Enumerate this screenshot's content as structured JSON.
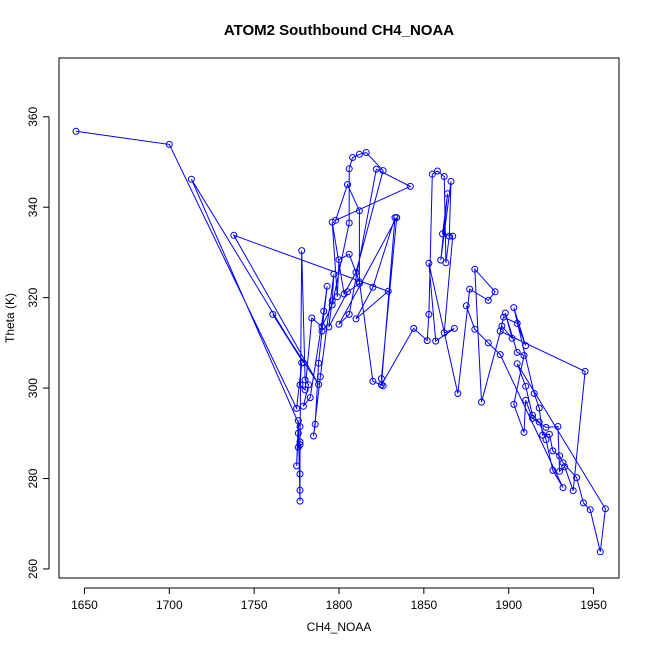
{
  "chart_data": {
    "type": "line",
    "title": "ATOM2 Southbound CH4_NOAA",
    "xlabel": "CH4_NOAA",
    "ylabel": "Theta (K)",
    "xlim": [
      1635,
      1965
    ],
    "ylim": [
      258,
      373
    ],
    "xticks": [
      1650,
      1700,
      1750,
      1800,
      1850,
      1900,
      1950
    ],
    "yticks": [
      260,
      280,
      300,
      320,
      340,
      360
    ],
    "grid": false,
    "legend": "none",
    "series": [
      {
        "name": "CH4_NOAA vs Theta",
        "color": "#0000ff",
        "marker": "open-circle",
        "points": [
          [
            1645,
            356.8
          ],
          [
            1700,
            353.9
          ],
          [
            1775,
            295.5
          ],
          [
            1778,
            305.6
          ],
          [
            1777,
            300.7
          ],
          [
            1780,
            299.6
          ],
          [
            1784,
            315.5
          ],
          [
            1790,
            313.6
          ],
          [
            1796,
            318.4
          ],
          [
            1806,
            336.5
          ],
          [
            1806,
            348.5
          ],
          [
            1808,
            351.0
          ],
          [
            1812,
            351.7
          ],
          [
            1816,
            352.1
          ],
          [
            1826,
            348.1
          ],
          [
            1810,
            325.6
          ],
          [
            1803,
            320.8
          ],
          [
            1796,
            336.7
          ],
          [
            1799,
            320.2
          ],
          [
            1800,
            328.4
          ],
          [
            1806,
            329.6
          ],
          [
            1812,
            323.5
          ],
          [
            1820,
            301.5
          ],
          [
            1826,
            300.5
          ],
          [
            1825,
            302.1
          ],
          [
            1834,
            337.7
          ],
          [
            1800,
            314.1
          ],
          [
            1806,
            316.3
          ],
          [
            1822,
            348.4
          ],
          [
            1842,
            344.6
          ],
          [
            1798,
            337.1
          ],
          [
            1805,
            345.0
          ],
          [
            1812,
            339.2
          ],
          [
            1812,
            323.1
          ],
          [
            1805,
            321.3
          ],
          [
            1794,
            313.5
          ],
          [
            1796,
            319.3
          ],
          [
            1797,
            325.2
          ],
          [
            1789,
            302.5
          ],
          [
            1785,
            289.4
          ],
          [
            1786,
            292.0
          ],
          [
            1788,
            305.5
          ],
          [
            1790,
            312.6
          ],
          [
            1793,
            322.5
          ],
          [
            1791,
            317.0
          ],
          [
            1783,
            297.9
          ],
          [
            1779,
            296.0
          ],
          [
            1782,
            300.7
          ],
          [
            1780,
            301.8
          ],
          [
            1778,
            330.4
          ],
          [
            1777,
            287.5
          ],
          [
            1776,
            286.9
          ],
          [
            1776,
            290.0
          ],
          [
            1775,
            282.8
          ],
          [
            1776,
            292.8
          ],
          [
            1777,
            275.0
          ],
          [
            1777,
            277.4
          ],
          [
            1777,
            281.0
          ],
          [
            1777,
            288.1
          ],
          [
            1777,
            291.5
          ],
          [
            1713,
            346.2
          ],
          [
            1779,
            305.6
          ],
          [
            1761,
            316.3
          ],
          [
            1788,
            300.8
          ],
          [
            1738,
            333.8
          ],
          [
            1829,
            321.4
          ],
          [
            1810,
            315.3
          ],
          [
            1820,
            322.3
          ],
          [
            1833,
            337.7
          ],
          [
            1825,
            300.7
          ],
          [
            1844,
            313.2
          ],
          [
            1852,
            310.5
          ],
          [
            1853,
            316.3
          ],
          [
            1855,
            347.3
          ],
          [
            1858,
            348.0
          ],
          [
            1862,
            346.8
          ],
          [
            1863,
            327.7
          ],
          [
            1865,
            333.6
          ],
          [
            1866,
            345.7
          ],
          [
            1860,
            328.3
          ],
          [
            1864,
            343.0
          ],
          [
            1861,
            334.1
          ],
          [
            1867,
            333.6
          ],
          [
            1862,
            312.2
          ],
          [
            1868,
            313.2
          ],
          [
            1857,
            310.4
          ],
          [
            1853,
            327.6
          ],
          [
            1870,
            298.8
          ],
          [
            1877,
            321.9
          ],
          [
            1888,
            319.4
          ],
          [
            1892,
            321.3
          ],
          [
            1880,
            326.3
          ],
          [
            1884,
            296.9
          ],
          [
            1896,
            313.7
          ],
          [
            1902,
            311.0
          ],
          [
            1898,
            316.6
          ],
          [
            1905,
            307.9
          ],
          [
            1909,
            307.2
          ],
          [
            1903,
            296.4
          ],
          [
            1909,
            290.2
          ],
          [
            1910,
            297.3
          ],
          [
            1914,
            293.3
          ],
          [
            1922,
            291.3
          ],
          [
            1929,
            291.5
          ],
          [
            1930,
            281.6
          ],
          [
            1933,
            282.6
          ],
          [
            1938,
            277.3
          ],
          [
            1945,
            303.7
          ],
          [
            1895,
            312.6
          ],
          [
            1897,
            315.7
          ],
          [
            1905,
            314.3
          ],
          [
            1910,
            309.4
          ],
          [
            1903,
            317.8
          ],
          [
            1915,
            298.8
          ],
          [
            1918,
            295.6
          ],
          [
            1920,
            289.6
          ],
          [
            1924,
            289.8
          ],
          [
            1926,
            286.1
          ],
          [
            1930,
            285.0
          ],
          [
            1932,
            283.5
          ],
          [
            1940,
            280.2
          ],
          [
            1944,
            274.6
          ],
          [
            1948,
            273.1
          ],
          [
            1954,
            263.8
          ],
          [
            1957,
            273.3
          ],
          [
            1905,
            305.4
          ],
          [
            1910,
            300.4
          ],
          [
            1914,
            294.0
          ],
          [
            1918,
            292.5
          ],
          [
            1922,
            288.6
          ],
          [
            1926,
            281.8
          ],
          [
            1932,
            278.0
          ],
          [
            1895,
            307.4
          ],
          [
            1888,
            310.0
          ],
          [
            1880,
            313.0
          ],
          [
            1875,
            318.2
          ]
        ]
      }
    ]
  }
}
